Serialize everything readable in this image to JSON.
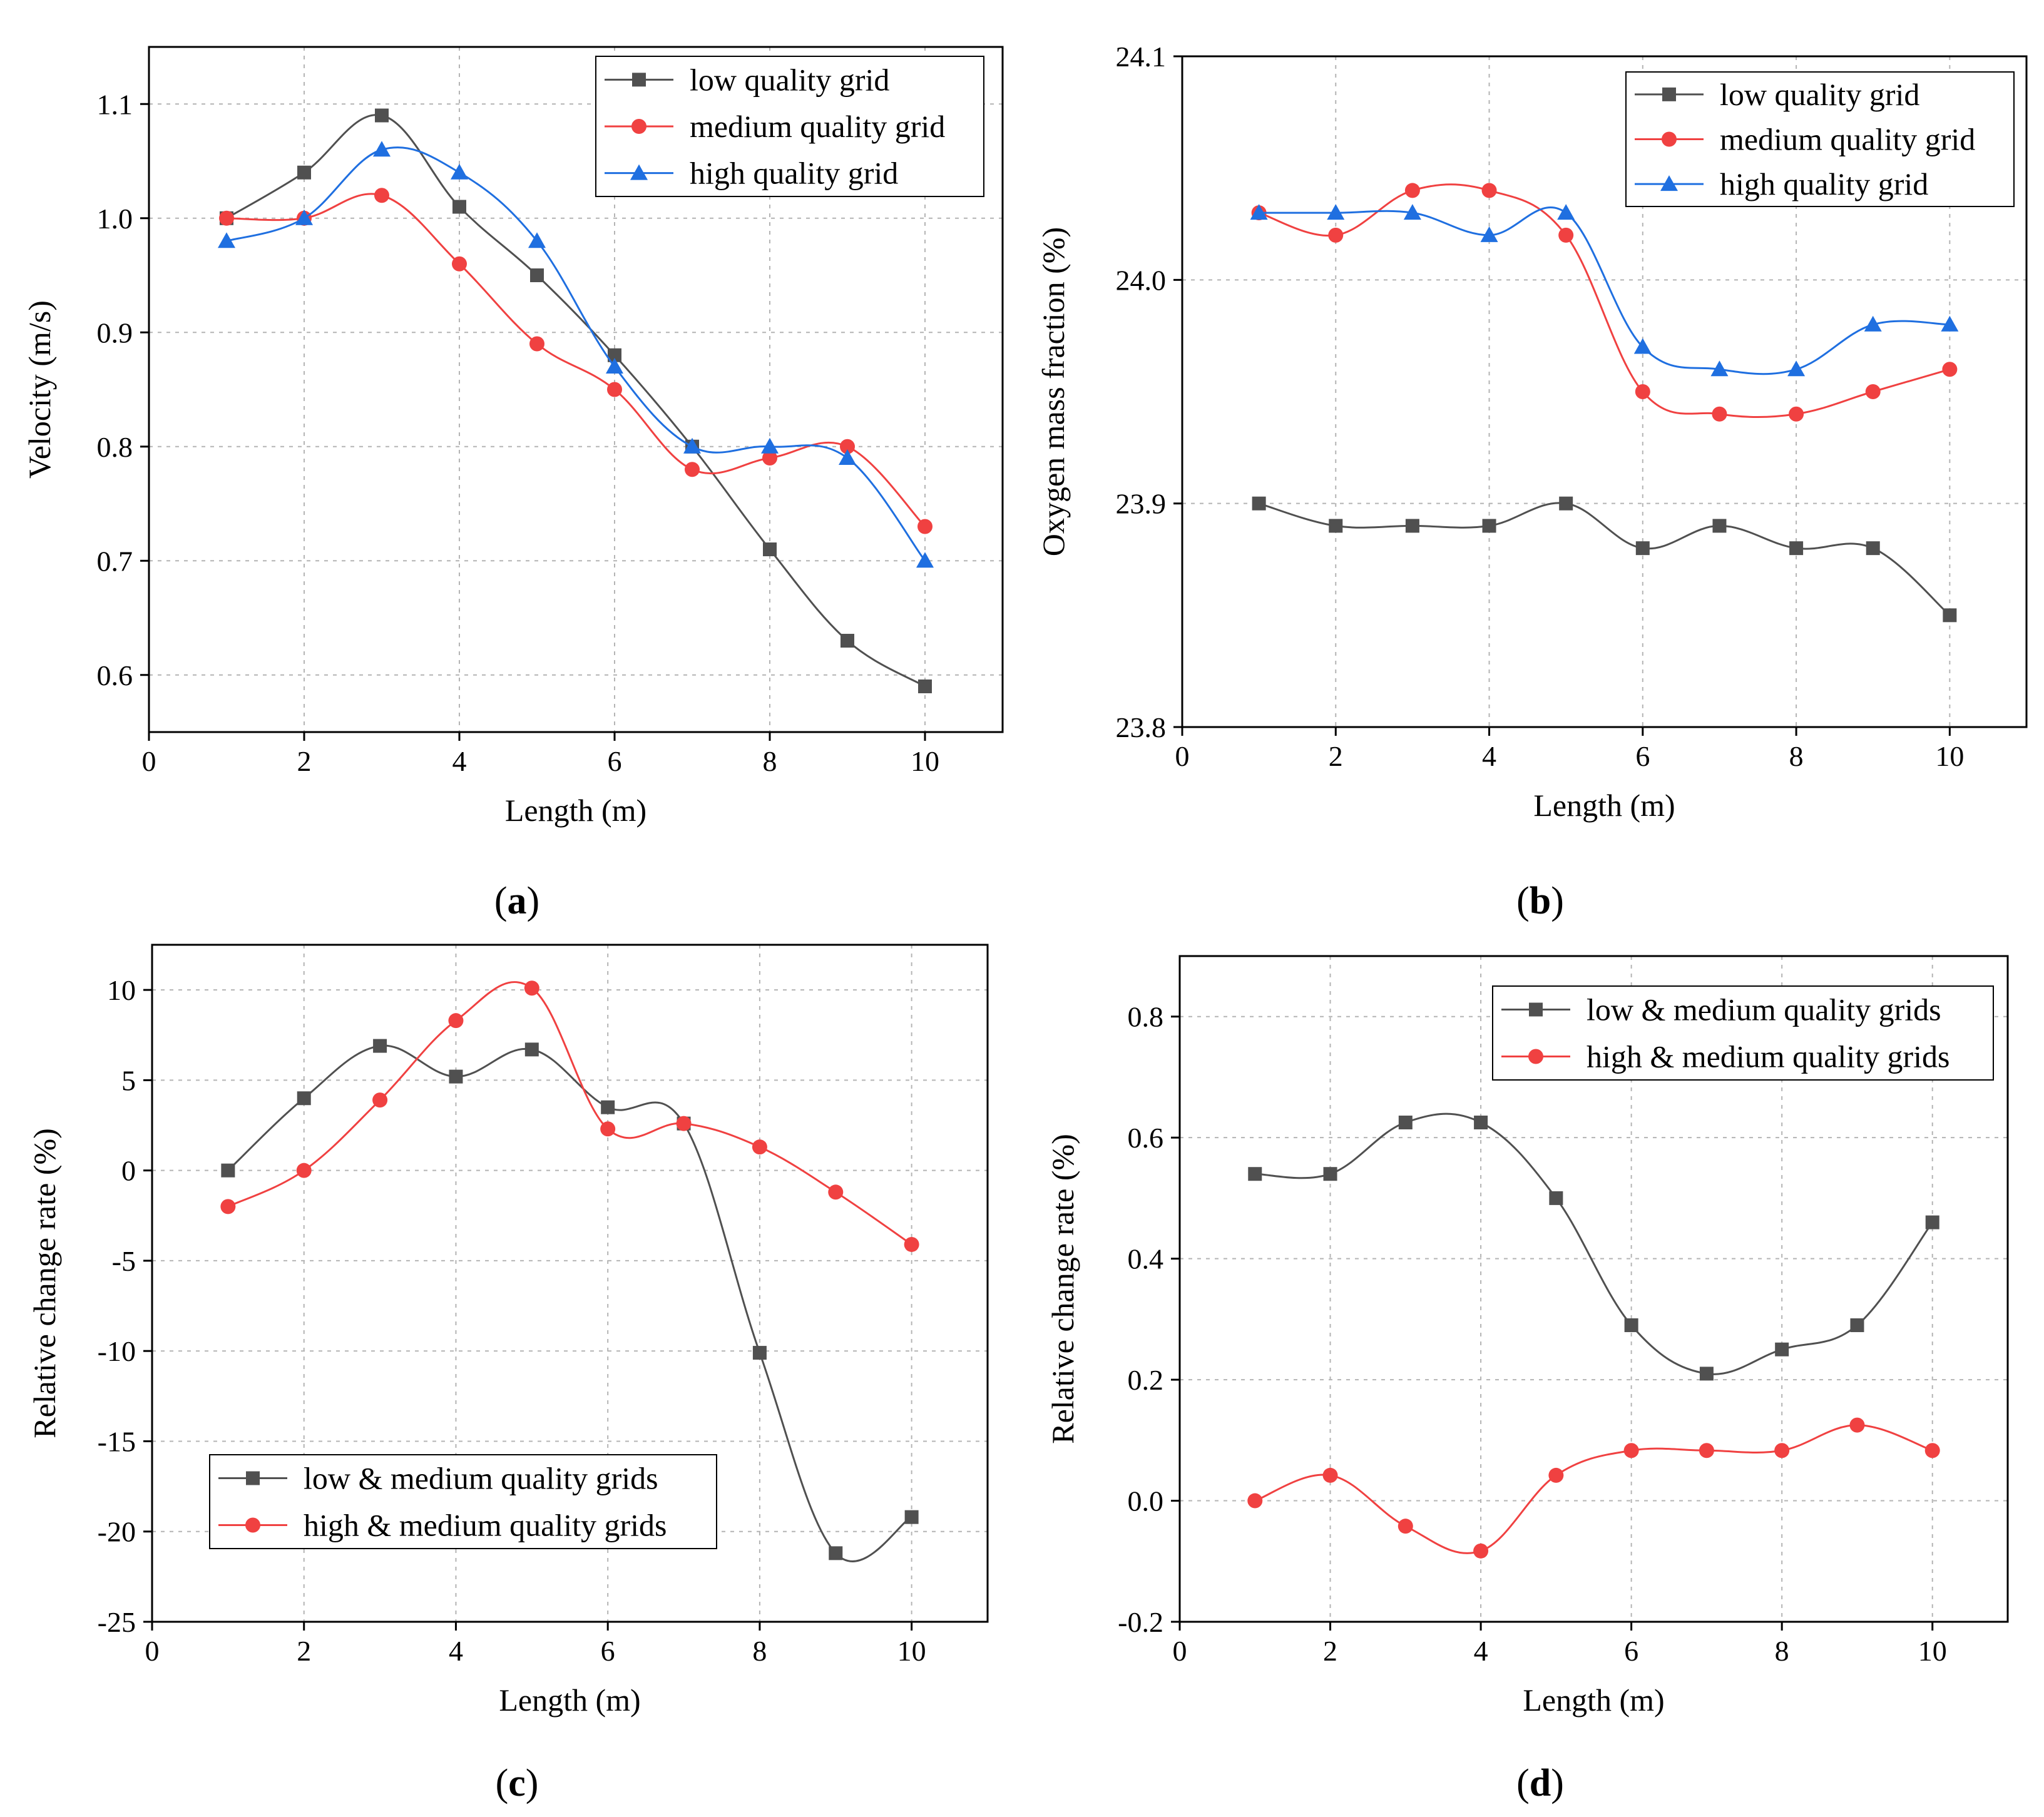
{
  "colors": {
    "low": "#505050",
    "medium": "#f04141",
    "high": "#1f6fe0",
    "grid": "#b4b4b4"
  },
  "chart_data": [
    {
      "panel": "a",
      "type": "line",
      "caption": "a",
      "xlabel": "Length (m)",
      "ylabel": "Velocity (m/s)",
      "xlim": [
        0,
        11
      ],
      "ylim": [
        0.55,
        1.15
      ],
      "xticks": [
        0,
        2,
        4,
        6,
        8,
        10
      ],
      "xtick_labels": [
        "0",
        "2",
        "4",
        "6",
        "8",
        "10"
      ],
      "yticks": [
        0.6,
        0.7,
        0.8,
        0.9,
        1.0,
        1.1
      ],
      "ytick_labels": [
        "0.6",
        "0.7",
        "0.8",
        "0.9",
        "1.0",
        "1.1"
      ],
      "legend_position": "top-right",
      "x": [
        1,
        2,
        3,
        4,
        5,
        6,
        7,
        8,
        9,
        10
      ],
      "series": [
        {
          "name": "low quality grid",
          "color_key": "low",
          "marker": "square",
          "values": [
            1.0,
            1.04,
            1.09,
            1.01,
            0.95,
            0.88,
            0.8,
            0.71,
            0.63,
            0.59
          ]
        },
        {
          "name": "medium quality grid",
          "color_key": "medium",
          "marker": "circle",
          "values": [
            1.0,
            1.0,
            1.02,
            0.96,
            0.89,
            0.85,
            0.78,
            0.79,
            0.8,
            0.73
          ]
        },
        {
          "name": "high quality grid",
          "color_key": "high",
          "marker": "triangle",
          "values": [
            0.98,
            1.0,
            1.06,
            1.04,
            0.98,
            0.87,
            0.8,
            0.8,
            0.79,
            0.7
          ]
        }
      ]
    },
    {
      "panel": "b",
      "type": "line",
      "caption": "b",
      "xlabel": "Length (m)",
      "ylabel": "Oxygen mass fraction (%)",
      "xlim": [
        0,
        11
      ],
      "ylim": [
        23.8,
        24.1
      ],
      "xticks": [
        0,
        2,
        4,
        6,
        8,
        10
      ],
      "xtick_labels": [
        "0",
        "2",
        "4",
        "6",
        "8",
        "10"
      ],
      "yticks": [
        23.8,
        23.9,
        24.0,
        24.1
      ],
      "ytick_labels": [
        "23.8",
        "23.9",
        "24.0",
        "24.1"
      ],
      "legend_position": "top-right",
      "x": [
        1,
        2,
        3,
        4,
        5,
        6,
        7,
        8,
        9,
        10
      ],
      "series": [
        {
          "name": "low quality grid",
          "color_key": "low",
          "marker": "square",
          "values": [
            23.9,
            23.89,
            23.89,
            23.89,
            23.9,
            23.88,
            23.89,
            23.88,
            23.88,
            23.85
          ]
        },
        {
          "name": "medium quality grid",
          "color_key": "medium",
          "marker": "circle",
          "values": [
            24.03,
            24.02,
            24.04,
            24.04,
            24.02,
            23.95,
            23.94,
            23.94,
            23.95,
            23.96
          ]
        },
        {
          "name": "high quality grid",
          "color_key": "high",
          "marker": "triangle",
          "values": [
            24.03,
            24.03,
            24.03,
            24.02,
            24.03,
            23.97,
            23.96,
            23.96,
            23.98,
            23.98
          ]
        }
      ]
    },
    {
      "panel": "c",
      "type": "line",
      "caption": "c",
      "xlabel": "Length (m)",
      "ylabel": "Relative change rate (%)",
      "xlim": [
        0,
        11
      ],
      "ylim": [
        -25,
        12.5
      ],
      "xticks": [
        0,
        2,
        4,
        6,
        8,
        10
      ],
      "xtick_labels": [
        "0",
        "2",
        "4",
        "6",
        "8",
        "10"
      ],
      "yticks": [
        -25,
        -20,
        -15,
        -10,
        -5,
        0,
        5,
        10
      ],
      "ytick_labels": [
        "-25",
        "-20",
        "-15",
        "-10",
        "-5",
        "0",
        "5",
        "10"
      ],
      "legend_position": "bottom-left",
      "x": [
        1,
        2,
        3,
        4,
        5,
        6,
        7,
        8,
        9,
        10
      ],
      "series": [
        {
          "name": "low & medium quality grids",
          "color_key": "low",
          "marker": "square",
          "values": [
            0.0,
            4.0,
            6.9,
            5.2,
            6.7,
            3.5,
            2.6,
            -10.1,
            -21.2,
            -19.2
          ]
        },
        {
          "name": "high & medium quality grids",
          "color_key": "medium",
          "marker": "circle",
          "values": [
            -2.0,
            0.0,
            3.9,
            8.3,
            10.1,
            2.3,
            2.6,
            1.3,
            -1.2,
            -4.1
          ]
        }
      ]
    },
    {
      "panel": "d",
      "type": "line",
      "caption": "d",
      "xlabel": "Length (m)",
      "ylabel": "Relative change rate (%)",
      "xlim": [
        0,
        11
      ],
      "ylim": [
        -0.2,
        0.9
      ],
      "xticks": [
        0,
        2,
        4,
        6,
        8,
        10
      ],
      "xtick_labels": [
        "0",
        "2",
        "4",
        "6",
        "8",
        "10"
      ],
      "yticks": [
        -0.2,
        0.0,
        0.2,
        0.4,
        0.6,
        0.8
      ],
      "ytick_labels": [
        "-0.2",
        "0.0",
        "0.2",
        "0.4",
        "0.6",
        "0.8"
      ],
      "legend_position": "top-right",
      "x": [
        1,
        2,
        3,
        4,
        5,
        6,
        7,
        8,
        9,
        10
      ],
      "series": [
        {
          "name": "low & medium quality grids",
          "color_key": "low",
          "marker": "square",
          "values": [
            0.54,
            0.54,
            0.625,
            0.625,
            0.5,
            0.29,
            0.21,
            0.25,
            0.29,
            0.46
          ]
        },
        {
          "name": "high & medium quality grids",
          "color_key": "medium",
          "marker": "circle",
          "values": [
            0.0,
            0.042,
            -0.042,
            -0.083,
            0.042,
            0.083,
            0.083,
            0.083,
            0.125,
            0.083
          ]
        }
      ]
    }
  ]
}
